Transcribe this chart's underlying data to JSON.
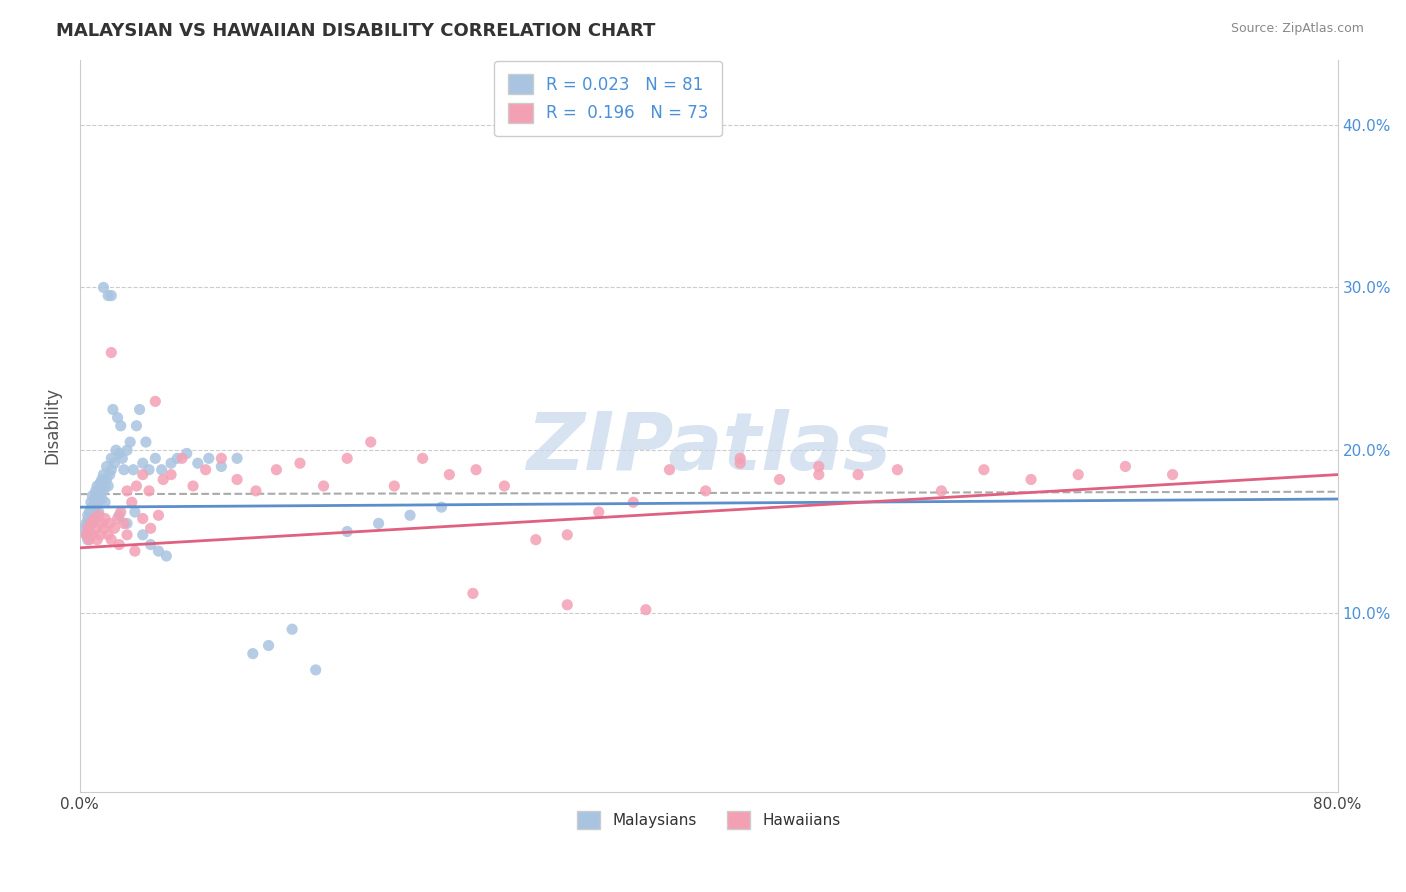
{
  "title": "MALAYSIAN VS HAWAIIAN DISABILITY CORRELATION CHART",
  "source": "Source: ZipAtlas.com",
  "ylabel": "Disability",
  "xlim": [
    0.0,
    0.8
  ],
  "ylim": [
    -0.01,
    0.44
  ],
  "x_ticks": [
    0.0,
    0.1,
    0.2,
    0.3,
    0.4,
    0.5,
    0.6,
    0.7,
    0.8
  ],
  "x_tick_labels": [
    "0.0%",
    "",
    "",
    "",
    "",
    "",
    "",
    "",
    "80.0%"
  ],
  "y_ticks": [
    0.1,
    0.2,
    0.3,
    0.4
  ],
  "y_tick_labels": [
    "10.0%",
    "20.0%",
    "30.0%",
    "40.0%"
  ],
  "malaysian_color": "#a8c4e0",
  "hawaiian_color": "#f4a0b4",
  "trendline_malaysian_color": "#5b8ecb",
  "trendline_hawaiian_color": "#e06080",
  "watermark_color": "#c8d8ec",
  "malaysians_x": [
    0.003,
    0.004,
    0.004,
    0.005,
    0.005,
    0.005,
    0.006,
    0.006,
    0.006,
    0.007,
    0.007,
    0.007,
    0.008,
    0.008,
    0.008,
    0.009,
    0.009,
    0.01,
    0.01,
    0.01,
    0.011,
    0.011,
    0.012,
    0.012,
    0.013,
    0.013,
    0.014,
    0.014,
    0.015,
    0.015,
    0.016,
    0.016,
    0.017,
    0.017,
    0.018,
    0.018,
    0.019,
    0.02,
    0.02,
    0.021,
    0.022,
    0.023,
    0.024,
    0.025,
    0.026,
    0.027,
    0.028,
    0.03,
    0.032,
    0.034,
    0.036,
    0.038,
    0.04,
    0.042,
    0.044,
    0.048,
    0.052,
    0.058,
    0.062,
    0.068,
    0.075,
    0.082,
    0.09,
    0.1,
    0.11,
    0.12,
    0.135,
    0.15,
    0.17,
    0.19,
    0.21,
    0.23,
    0.015,
    0.02,
    0.025,
    0.03,
    0.035,
    0.04,
    0.045,
    0.05,
    0.055
  ],
  "malaysians_y": [
    0.152,
    0.148,
    0.155,
    0.16,
    0.145,
    0.157,
    0.162,
    0.155,
    0.15,
    0.158,
    0.168,
    0.162,
    0.155,
    0.165,
    0.172,
    0.16,
    0.17,
    0.165,
    0.158,
    0.175,
    0.178,
    0.168,
    0.172,
    0.162,
    0.175,
    0.18,
    0.17,
    0.182,
    0.175,
    0.185,
    0.178,
    0.168,
    0.182,
    0.19,
    0.295,
    0.178,
    0.185,
    0.188,
    0.195,
    0.225,
    0.192,
    0.2,
    0.22,
    0.198,
    0.215,
    0.195,
    0.188,
    0.2,
    0.205,
    0.188,
    0.215,
    0.225,
    0.192,
    0.205,
    0.188,
    0.195,
    0.188,
    0.192,
    0.195,
    0.198,
    0.192,
    0.195,
    0.19,
    0.195,
    0.075,
    0.08,
    0.09,
    0.065,
    0.15,
    0.155,
    0.16,
    0.165,
    0.3,
    0.295,
    0.16,
    0.155,
    0.162,
    0.148,
    0.142,
    0.138,
    0.135
  ],
  "hawaiians_x": [
    0.004,
    0.005,
    0.006,
    0.007,
    0.008,
    0.009,
    0.01,
    0.011,
    0.012,
    0.013,
    0.014,
    0.015,
    0.016,
    0.018,
    0.019,
    0.02,
    0.022,
    0.024,
    0.026,
    0.028,
    0.03,
    0.033,
    0.036,
    0.04,
    0.044,
    0.048,
    0.053,
    0.058,
    0.065,
    0.072,
    0.08,
    0.09,
    0.1,
    0.112,
    0.125,
    0.14,
    0.155,
    0.17,
    0.185,
    0.2,
    0.218,
    0.235,
    0.252,
    0.27,
    0.29,
    0.31,
    0.33,
    0.352,
    0.375,
    0.398,
    0.42,
    0.445,
    0.47,
    0.495,
    0.52,
    0.548,
    0.575,
    0.605,
    0.635,
    0.665,
    0.695,
    0.25,
    0.31,
    0.36,
    0.42,
    0.47,
    0.02,
    0.025,
    0.03,
    0.035,
    0.04,
    0.045,
    0.05
  ],
  "hawaiians_y": [
    0.148,
    0.152,
    0.145,
    0.155,
    0.148,
    0.158,
    0.152,
    0.145,
    0.16,
    0.148,
    0.155,
    0.152,
    0.158,
    0.148,
    0.155,
    0.26,
    0.152,
    0.158,
    0.162,
    0.155,
    0.175,
    0.168,
    0.178,
    0.185,
    0.175,
    0.23,
    0.182,
    0.185,
    0.195,
    0.178,
    0.188,
    0.195,
    0.182,
    0.175,
    0.188,
    0.192,
    0.178,
    0.195,
    0.205,
    0.178,
    0.195,
    0.185,
    0.188,
    0.178,
    0.145,
    0.105,
    0.162,
    0.168,
    0.188,
    0.175,
    0.192,
    0.182,
    0.185,
    0.185,
    0.188,
    0.175,
    0.188,
    0.182,
    0.185,
    0.19,
    0.185,
    0.112,
    0.148,
    0.102,
    0.195,
    0.19,
    0.145,
    0.142,
    0.148,
    0.138,
    0.158,
    0.152,
    0.16
  ]
}
